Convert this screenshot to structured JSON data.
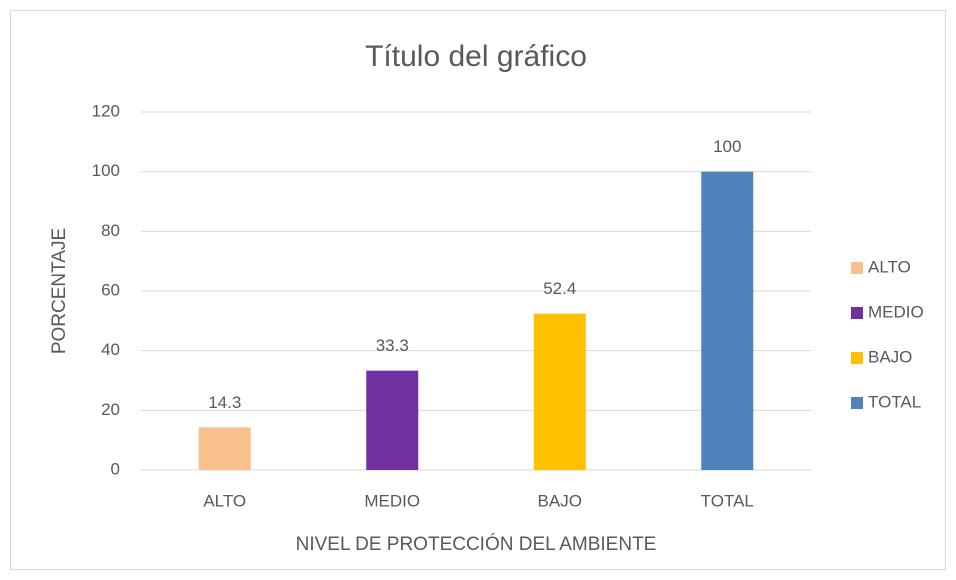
{
  "chart_data": {
    "type": "bar",
    "title": "Título del gráfico",
    "x_label": "NIVEL DE PROTECCIÓN DEL AMBIENTE",
    "y_label": "PORCENTAJE",
    "categories": [
      "ALTO",
      "MEDIO",
      "BAJO",
      "TOTAL"
    ],
    "values": [
      14.3,
      33.3,
      52.4,
      100
    ],
    "colors": [
      "#f8bf8f",
      "#7030a0",
      "#ffc000",
      "#4f81bd"
    ],
    "ylim": [
      0,
      120
    ],
    "yticks": [
      0,
      20,
      40,
      60,
      80,
      100,
      120
    ],
    "grid": true,
    "legend": "right"
  }
}
